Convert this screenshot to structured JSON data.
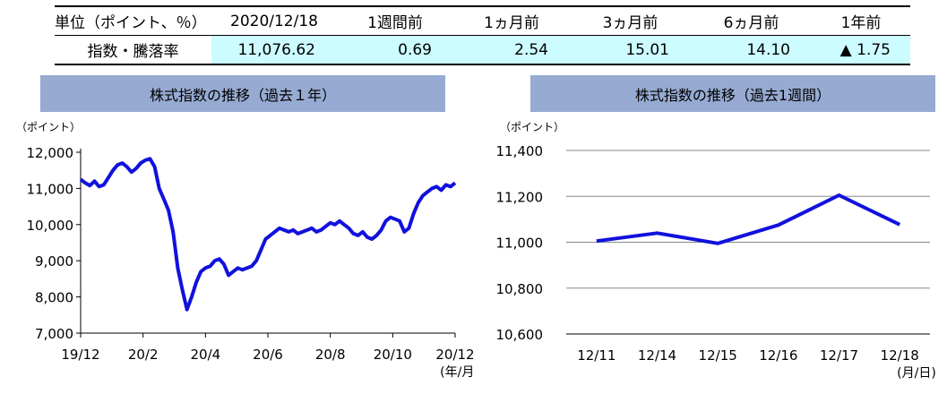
{
  "table": {
    "header": [
      "単位（ポイント、％）",
      "2020/12/18",
      "1週間前",
      "1ヵ月前",
      "3ヵ月前",
      "6ヵ月前",
      "1年前"
    ],
    "row_label": "指数・騰落率",
    "values": [
      "11,076.62",
      "0.69",
      "2.54",
      "15.01",
      "14.10",
      "▲ 1.75"
    ]
  },
  "chart_data": [
    {
      "type": "line",
      "title": "株式指数の推移（過去１年）",
      "ylabel": "（ポイント）",
      "xlabel": "(年/月)",
      "ylim": [
        7000,
        12000
      ],
      "yticks": [
        "12,000",
        "11,000",
        "10,000",
        "9,000",
        "8,000",
        "7,000"
      ],
      "xticks": [
        "19/12",
        "20/2",
        "20/4",
        "20/6",
        "20/8",
        "20/10",
        "20/12"
      ],
      "color": "#1111dd",
      "series": [
        {
          "x_range": [
            "2019-12",
            "2020-12"
          ],
          "values": [
            11250,
            11150,
            11080,
            11200,
            11050,
            11100,
            11300,
            11500,
            11650,
            11700,
            11600,
            11450,
            11550,
            11700,
            11780,
            11820,
            11600,
            11000,
            10700,
            10400,
            9800,
            8800,
            8200,
            7650,
            8000,
            8400,
            8700,
            8800,
            8850,
            9000,
            9050,
            8900,
            8600,
            8700,
            8800,
            8750,
            8800,
            8850,
            9000,
            9300,
            9600,
            9700,
            9800,
            9900,
            9850,
            9800,
            9850,
            9750,
            9800,
            9850,
            9900,
            9800,
            9850,
            9950,
            10050,
            10000,
            10100,
            10000,
            9900,
            9750,
            9700,
            9800,
            9650,
            9600,
            9700,
            9850,
            10100,
            10200,
            10150,
            10100,
            9800,
            9900,
            10300,
            10600,
            10800,
            10900,
            11000,
            11050,
            10950,
            11100,
            11050,
            11150
          ]
        }
      ]
    },
    {
      "type": "line",
      "title": "株式指数の推移（過去1週間）",
      "ylabel": "（ポイント）",
      "xlabel": "(月/日)",
      "ylim": [
        10600,
        11400
      ],
      "yticks": [
        "11,400",
        "11,200",
        "11,000",
        "10,800",
        "10,600"
      ],
      "categories": [
        "12/11",
        "12/14",
        "12/15",
        "12/16",
        "12/17",
        "12/18"
      ],
      "color": "#1111dd",
      "series": [
        {
          "values": [
            11005,
            11040,
            10995,
            11075,
            11205,
            11077
          ]
        }
      ]
    }
  ]
}
